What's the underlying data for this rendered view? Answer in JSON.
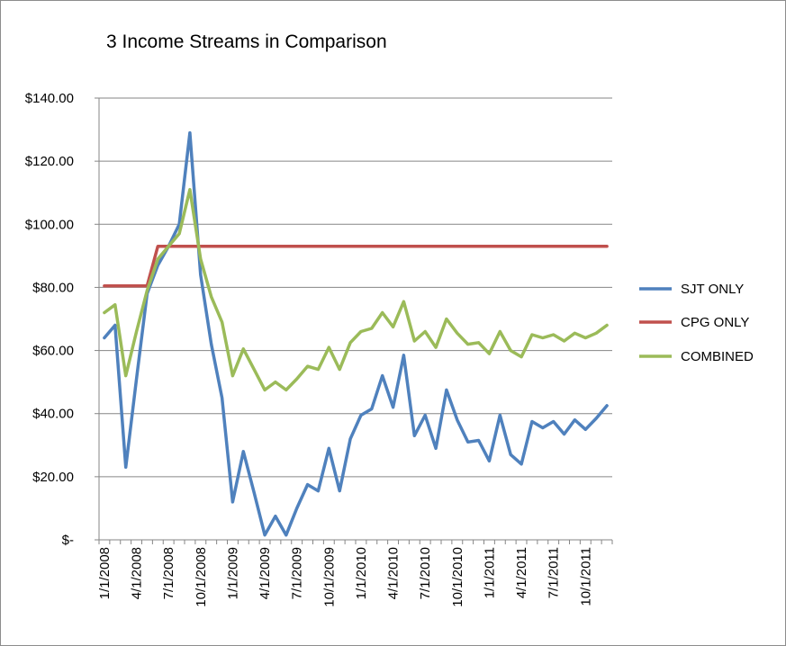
{
  "chart_data": {
    "type": "line",
    "title": "3 Income Streams in Comparison",
    "xlabel": "",
    "ylabel": "",
    "ylim": [
      0,
      140
    ],
    "yticks": [
      {
        "value": 0,
        "label": "$-"
      },
      {
        "value": 20,
        "label": "$20.00"
      },
      {
        "value": 40,
        "label": "$40.00"
      },
      {
        "value": 60,
        "label": "$60.00"
      },
      {
        "value": 80,
        "label": "$80.00"
      },
      {
        "value": 100,
        "label": "$100.00"
      },
      {
        "value": 120,
        "label": "$120.00"
      },
      {
        "value": 140,
        "label": "$140.00"
      }
    ],
    "xtick_labels": [
      "1/1/2008",
      "4/1/2008",
      "7/1/2008",
      "10/1/2008",
      "1/1/2009",
      "4/1/2009",
      "7/1/2009",
      "10/1/2009",
      "1/1/2010",
      "4/1/2010",
      "7/1/2010",
      "10/1/2010",
      "1/1/2011",
      "4/1/2011",
      "7/1/2011",
      "10/1/2011"
    ],
    "grid": true,
    "legend_position": "right",
    "x": [
      "1/1/2008",
      "2/1/2008",
      "3/1/2008",
      "4/1/2008",
      "5/1/2008",
      "6/1/2008",
      "7/1/2008",
      "8/1/2008",
      "9/1/2008",
      "10/1/2008",
      "11/1/2008",
      "12/1/2008",
      "1/1/2009",
      "2/1/2009",
      "3/1/2009",
      "4/1/2009",
      "5/1/2009",
      "6/1/2009",
      "7/1/2009",
      "8/1/2009",
      "9/1/2009",
      "10/1/2009",
      "11/1/2009",
      "12/1/2009",
      "1/1/2010",
      "2/1/2010",
      "3/1/2010",
      "4/1/2010",
      "5/1/2010",
      "6/1/2010",
      "7/1/2010",
      "8/1/2010",
      "9/1/2010",
      "10/1/2010",
      "11/1/2010",
      "12/1/2010",
      "1/1/2011",
      "2/1/2011",
      "3/1/2011",
      "4/1/2011",
      "5/1/2011",
      "6/1/2011",
      "7/1/2011",
      "8/1/2011",
      "9/1/2011",
      "10/1/2011",
      "11/1/2011",
      "12/1/2011"
    ],
    "series": [
      {
        "name": "SJT ONLY",
        "color": "#4f81bd",
        "values": [
          64,
          68,
          23,
          51,
          78,
          87,
          93,
          100,
          129,
          84,
          62,
          45,
          12,
          28,
          15,
          1.5,
          7.5,
          1.5,
          10,
          17.5,
          15.5,
          29,
          15.5,
          32,
          39.5,
          41.5,
          52,
          42,
          58.5,
          33,
          39.5,
          29,
          47.5,
          38,
          31,
          31.5,
          25,
          39.5,
          27,
          24,
          37.5,
          35.5,
          37.5,
          33.5,
          38,
          35,
          38.5,
          42.5
        ]
      },
      {
        "name": "CPG ONLY",
        "color": "#c0504d",
        "values": [
          80.5,
          80.5,
          80.5,
          80.5,
          80.5,
          93,
          93,
          93,
          93,
          93,
          93,
          93,
          93,
          93,
          93,
          93,
          93,
          93,
          93,
          93,
          93,
          93,
          93,
          93,
          93,
          93,
          93,
          93,
          93,
          93,
          93,
          93,
          93,
          93,
          93,
          93,
          93,
          93,
          93,
          93,
          93,
          93,
          93,
          93,
          93,
          93,
          93,
          93
        ]
      },
      {
        "name": "COMBINED",
        "color": "#9bbb59",
        "values": [
          72,
          74.5,
          52,
          66,
          79,
          89,
          93,
          97,
          111,
          89,
          77,
          69,
          52,
          60.5,
          54,
          47.5,
          50,
          47.5,
          51,
          55,
          54,
          61,
          54,
          62.5,
          66,
          67,
          72,
          67.5,
          75.5,
          63,
          66,
          61,
          70,
          65.5,
          62,
          62.5,
          59,
          66,
          60,
          58,
          65,
          64,
          65,
          63,
          65.5,
          64,
          65.5,
          68
        ]
      }
    ]
  }
}
